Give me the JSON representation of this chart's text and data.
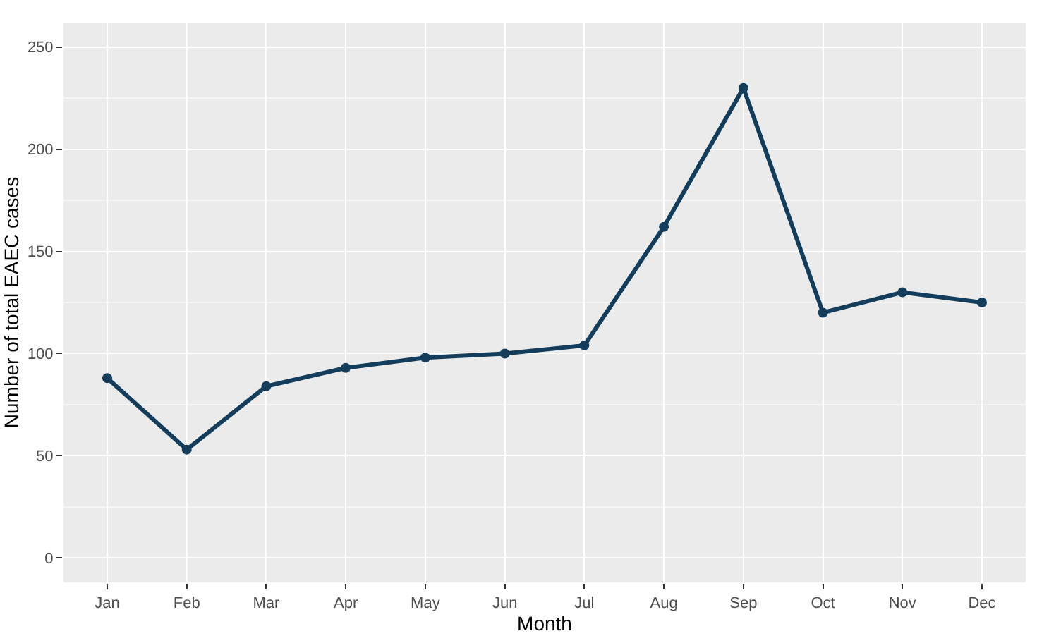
{
  "chart_data": {
    "type": "line",
    "xlabel": "Month",
    "ylabel": "Number of total EAEC cases",
    "categories": [
      "Jan",
      "Feb",
      "Mar",
      "Apr",
      "May",
      "Jun",
      "Jul",
      "Aug",
      "Sep",
      "Oct",
      "Nov",
      "Dec"
    ],
    "series": [
      {
        "color": "#143d5c",
        "values": [
          88,
          53,
          84,
          93,
          98,
          100,
          104,
          162,
          230,
          120,
          130,
          125
        ]
      }
    ],
    "ylim": [
      -12,
      262
    ],
    "yticks": [
      0,
      50,
      100,
      150,
      200,
      250
    ],
    "grid": true,
    "marker": "circle",
    "line_style": "solid"
  }
}
